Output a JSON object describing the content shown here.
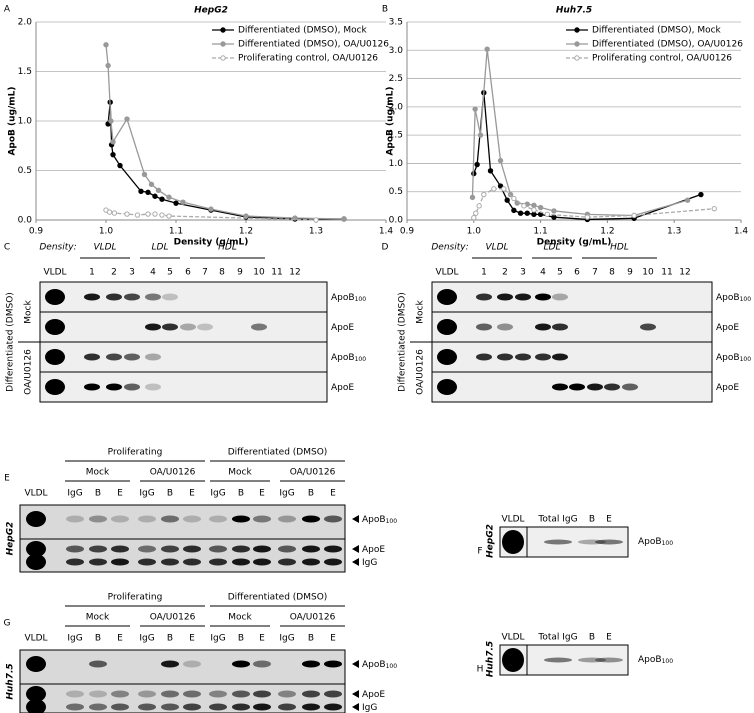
{
  "chart_data": [
    {
      "type": "line",
      "panel": "A",
      "title": "HepG2",
      "x_label": "Density (g/mL)",
      "y_label": "ApoB (ug/mL)",
      "xlim": [
        0.9,
        1.4
      ],
      "xticks": [
        0.9,
        {
          "value": 1,
          "label": "1.0"
        },
        1.1,
        1.2,
        1.3,
        1.4
      ],
      "ylim": [
        0,
        2
      ],
      "yticks": [
        {
          "value": 0,
          "label": "0.0"
        },
        0.5,
        {
          "value": 1,
          "label": "1.0"
        },
        1.5,
        {
          "value": 2,
          "label": "2.0"
        }
      ],
      "grid": true,
      "legend": "top-right",
      "series": [
        {
          "name": "Differentiated (DMSO), Mock",
          "color": "#000000",
          "style": "solid",
          "marker": "filled",
          "x": [
            1.003,
            1.006,
            1.008,
            1.01,
            1.02,
            1.05,
            1.06,
            1.07,
            1.08,
            1.1,
            1.15,
            1.2,
            1.27,
            1.34
          ],
          "values": [
            0.97,
            1.19,
            0.76,
            0.66,
            0.55,
            0.29,
            0.28,
            0.24,
            0.21,
            0.17,
            0.1,
            0.03,
            0.01,
            0.01
          ]
        },
        {
          "name": "Differentiated (DMSO), OA/U0126",
          "color": "#999999",
          "style": "solid",
          "marker": "filled",
          "x": [
            1.0,
            1.003,
            1.007,
            1.01,
            1.03,
            1.055,
            1.065,
            1.075,
            1.09,
            1.11,
            1.15,
            1.2,
            1.27,
            1.34
          ],
          "values": [
            1.77,
            1.56,
            1.0,
            0.79,
            1.02,
            0.46,
            0.36,
            0.3,
            0.23,
            0.18,
            0.11,
            0.04,
            0.02,
            0.01
          ]
        },
        {
          "name": "Proliferating control, OA/U0126",
          "color": "#aaaaaa",
          "style": "dashed",
          "marker": "open",
          "x": [
            1.0,
            1.005,
            1.012,
            1.03,
            1.045,
            1.06,
            1.07,
            1.08,
            1.09,
            1.3
          ],
          "values": [
            0.1,
            0.08,
            0.07,
            0.06,
            0.05,
            0.06,
            0.06,
            0.05,
            0.04,
            0.0
          ]
        }
      ]
    },
    {
      "type": "line",
      "panel": "B",
      "title": "Huh7.5",
      "x_label": "Density (g/mL)",
      "y_label": "ApoB (ug/mL)",
      "xlim": [
        0.9,
        1.4
      ],
      "xticks": [
        0.9,
        {
          "value": 1,
          "label": "1.0"
        },
        1.1,
        1.2,
        1.3,
        1.4
      ],
      "ylim": [
        0,
        3.5
      ],
      "yticks": [
        {
          "value": 0,
          "label": "0.0"
        },
        0.5,
        {
          "value": 1,
          "label": "1.0"
        },
        1.5,
        {
          "value": 2,
          "label": "2.0"
        },
        2.5,
        {
          "value": 3,
          "label": "3.0"
        },
        3.5
      ],
      "grid": true,
      "legend": "top-right",
      "series": [
        {
          "name": "Differentiated (DMSO), Mock",
          "color": "#000000",
          "style": "solid",
          "marker": "filled",
          "x": [
            1.0,
            1.005,
            1.015,
            1.025,
            1.04,
            1.05,
            1.06,
            1.07,
            1.08,
            1.09,
            1.1,
            1.12,
            1.17,
            1.24,
            1.34
          ],
          "values": [
            0.82,
            0.98,
            2.25,
            0.87,
            0.6,
            0.35,
            0.17,
            0.12,
            0.12,
            0.1,
            0.1,
            0.05,
            0.01,
            0.03,
            0.45
          ]
        },
        {
          "name": "Differentiated (DMSO), OA/U0126",
          "color": "#999999",
          "style": "solid",
          "marker": "filled",
          "x": [
            0.998,
            1.002,
            1.01,
            1.02,
            1.04,
            1.055,
            1.065,
            1.08,
            1.09,
            1.1,
            1.12,
            1.17,
            1.24,
            1.32
          ],
          "values": [
            0.4,
            1.96,
            1.5,
            3.02,
            1.05,
            0.45,
            0.3,
            0.28,
            0.26,
            0.22,
            0.16,
            0.1,
            0.08,
            0.35
          ]
        },
        {
          "name": "Proliferating control, OA/U0126",
          "color": "#aaaaaa",
          "style": "dashed",
          "marker": "open",
          "x": [
            1.0,
            1.003,
            1.008,
            1.015,
            1.03,
            1.045,
            1.06,
            1.075,
            1.09,
            1.11,
            1.17,
            1.24,
            1.36
          ],
          "values": [
            0.04,
            0.12,
            0.25,
            0.45,
            0.55,
            0.55,
            0.38,
            0.25,
            0.18,
            0.1,
            0.05,
            0.08,
            0.2
          ]
        }
      ]
    }
  ],
  "density_blots": [
    {
      "panel": "C",
      "density_label": "Density:",
      "fractions": [
        "VLDL",
        "LDL",
        "HDL"
      ],
      "lanes": [
        "VLDL",
        "1",
        "2",
        "3",
        "4",
        "5",
        "6",
        "7",
        "8",
        "9",
        "10",
        "11",
        "12"
      ],
      "group_label": "Differentiated (DMSO)",
      "conditions": [
        "Mock",
        "OA/U0126"
      ],
      "markers": [
        {
          "main": "ApoB",
          "sub": "100"
        },
        {
          "main": "ApoE"
        },
        {
          "main": "ApoB",
          "sub": "100"
        },
        {
          "main": "ApoE"
        }
      ]
    },
    {
      "panel": "D",
      "density_label": "Density:",
      "fractions": [
        "VLDL",
        "LDL",
        "HDL"
      ],
      "lanes": [
        "VLDL",
        "1",
        "2",
        "3",
        "4",
        "5",
        "6",
        "7",
        "8",
        "9",
        "10",
        "11",
        "12"
      ],
      "group_label": "Differentiated (DMSO)",
      "conditions": [
        "Mock",
        "OA/U0126"
      ],
      "markers": [
        {
          "main": "ApoB",
          "sub": "100"
        },
        {
          "main": "ApoE"
        },
        {
          "main": "ApoB",
          "sub": "100"
        },
        {
          "main": "ApoE"
        }
      ]
    }
  ],
  "ip_blots": [
    {
      "panel": "E",
      "cell_line": "HepG2",
      "states": [
        "Proliferating",
        "Differentiated (DMSO)"
      ],
      "treatments": [
        "Mock",
        "OA/U0126",
        "Mock",
        "OA/U0126"
      ],
      "lanes": [
        "VLDL",
        "IgG",
        "B",
        "E",
        "IgG",
        "B",
        "E",
        "IgG",
        "B",
        "E",
        "IgG",
        "B",
        "E"
      ],
      "markers": [
        {
          "main": "ApoB",
          "sub": "100"
        },
        {
          "main": "ApoE"
        },
        {
          "main": "IgG"
        }
      ]
    },
    {
      "panel": "G",
      "cell_line": "Huh7.5",
      "states": [
        "Proliferating",
        "Differentiated (DMSO)"
      ],
      "treatments": [
        "Mock",
        "OA/U0126",
        "Mock",
        "OA/U0126"
      ],
      "lanes": [
        "VLDL",
        "IgG",
        "B",
        "E",
        "IgG",
        "B",
        "E",
        "IgG",
        "B",
        "E",
        "IgG",
        "B",
        "E"
      ],
      "markers": [
        {
          "main": "ApoB",
          "sub": "100"
        },
        {
          "main": "ApoE"
        },
        {
          "main": "IgG"
        }
      ]
    }
  ],
  "total_blots": [
    {
      "panel": "F",
      "cell_line": "HepG2",
      "lanes": [
        "VLDL",
        "Total IgG",
        "B",
        "E"
      ],
      "marker": {
        "main": "ApoB",
        "sub": "100"
      }
    },
    {
      "panel": "H",
      "cell_line": "Huh7.5",
      "lanes": [
        "VLDL",
        "Total IgG",
        "B",
        "E"
      ],
      "marker": {
        "main": "ApoB",
        "sub": "100"
      }
    }
  ]
}
